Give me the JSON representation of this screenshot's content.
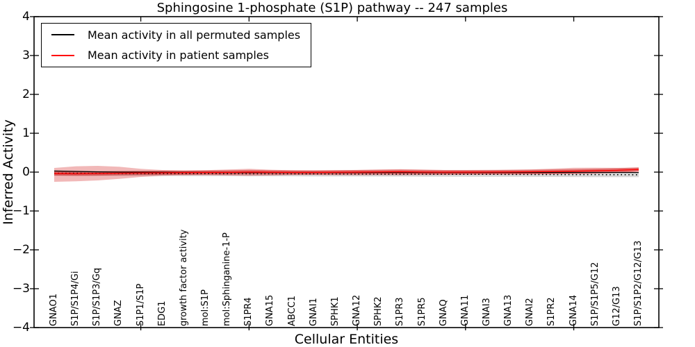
{
  "chart_data": {
    "type": "line",
    "title": "Sphingosine 1-phosphate (S1P) pathway -- 247 samples",
    "xlabel": "Cellular Entities",
    "ylabel": "Inferred Activity",
    "ylim": [
      -4,
      4
    ],
    "grid": false,
    "legend": {
      "position": "upper left",
      "entries": [
        {
          "label": "Mean activity in all permuted samples",
          "color": "#000000"
        },
        {
          "label": "Mean activity in patient samples",
          "color": "#ff0000"
        }
      ]
    },
    "yticks": [
      {
        "value": 4,
        "label": "4"
      },
      {
        "value": 3,
        "label": "3"
      },
      {
        "value": 2,
        "label": "2"
      },
      {
        "value": 1,
        "label": "1"
      },
      {
        "value": 0,
        "label": "0"
      },
      {
        "value": -1,
        "label": "−1"
      },
      {
        "value": -2,
        "label": "−2"
      },
      {
        "value": -3,
        "label": "−3"
      },
      {
        "value": -4,
        "label": "−4"
      }
    ],
    "xticks_minor": [
      5,
      10,
      15,
      20,
      25
    ],
    "categories": [
      "GNAO1",
      "S1P/S1P4/Gi",
      "S1P/S1P3/Gq",
      "GNAZ",
      "S1P1/S1P",
      "EDG1",
      "growth factor activity",
      "mol:S1P",
      "mol:Sphinganine-1-P",
      "S1PR4",
      "GNA15",
      "ABCC1",
      "GNAI1",
      "SPHK1",
      "GNA12",
      "SPHK2",
      "S1PR3",
      "S1PR5",
      "GNAQ",
      "GNA11",
      "GNAI3",
      "GNA13",
      "GNAI2",
      "S1PR2",
      "GNA14",
      "S1P/S1P5/G12",
      "G12/G13",
      "S1P/S1P2/G12/G13"
    ],
    "series": [
      {
        "name": "Mean activity in all permuted samples",
        "color": "#000000",
        "linestyle": "solid",
        "values": [
          0.029,
          0.018,
          0.007,
          0.0,
          -0.004,
          -0.006,
          -0.007,
          -0.008,
          -0.009,
          -0.009,
          -0.009,
          -0.009,
          -0.009,
          -0.009,
          -0.009,
          -0.009,
          -0.009,
          -0.009,
          -0.009,
          -0.009,
          -0.009,
          -0.009,
          -0.009,
          -0.009,
          -0.009,
          -0.009,
          -0.009,
          -0.01
        ]
      },
      {
        "name": "Mean activity in patient samples",
        "color": "#ff0000",
        "linestyle": "solid",
        "values": [
          -0.036,
          -0.043,
          -0.037,
          -0.029,
          -0.021,
          -0.016,
          -0.013,
          -0.009,
          -0.007,
          0.002,
          -0.004,
          -0.007,
          -0.007,
          -0.004,
          0.0,
          0.004,
          0.009,
          0.002,
          -0.002,
          0.0,
          0.002,
          0.004,
          0.007,
          0.014,
          0.023,
          0.034,
          0.046,
          0.068
        ]
      },
      {
        "name": "permuted baseline (dotted)",
        "color": "#000000",
        "linestyle": "dotted",
        "values": [
          -0.03,
          -0.031,
          -0.033,
          -0.034,
          -0.036,
          -0.037,
          -0.038,
          -0.04,
          -0.041,
          -0.043,
          -0.044,
          -0.045,
          -0.047,
          -0.048,
          -0.05,
          -0.051,
          -0.052,
          -0.054,
          -0.055,
          -0.057,
          -0.058,
          -0.059,
          -0.061,
          -0.062,
          -0.064,
          -0.065,
          -0.066,
          -0.068
        ]
      }
    ],
    "bands": [
      {
        "name": "patient mean ± std",
        "color": "#cc0000",
        "opacity": 0.28,
        "upper": [
          0.107,
          0.15,
          0.16,
          0.14,
          0.086,
          0.054,
          0.041,
          0.05,
          0.068,
          0.084,
          0.06,
          0.046,
          0.041,
          0.05,
          0.055,
          0.066,
          0.077,
          0.068,
          0.054,
          0.05,
          0.05,
          0.057,
          0.07,
          0.089,
          0.113,
          0.114,
          0.109,
          0.116
        ],
        "lower": [
          -0.25,
          -0.236,
          -0.214,
          -0.175,
          -0.125,
          -0.093,
          -0.082,
          -0.08,
          -0.087,
          -0.096,
          -0.087,
          -0.077,
          -0.073,
          -0.079,
          -0.08,
          -0.079,
          -0.08,
          -0.077,
          -0.073,
          -0.07,
          -0.066,
          -0.064,
          -0.061,
          -0.057,
          -0.052,
          -0.043,
          -0.023,
          0.011
        ]
      },
      {
        "name": "permuted mean ± std",
        "color": "#808080",
        "opacity": 0.3,
        "upper": [
          0.033,
          0.032,
          0.03,
          0.029,
          0.027,
          0.026,
          0.025,
          0.023,
          0.022,
          0.02,
          0.019,
          0.018,
          0.016,
          0.015,
          0.013,
          0.012,
          0.011,
          0.009,
          0.008,
          0.006,
          0.005,
          0.004,
          0.002,
          0.001,
          -0.001,
          -0.002,
          -0.003,
          -0.005
        ],
        "lower": [
          -0.093,
          -0.094,
          -0.096,
          -0.097,
          -0.099,
          -0.1,
          -0.101,
          -0.103,
          -0.104,
          -0.106,
          -0.107,
          -0.108,
          -0.11,
          -0.111,
          -0.113,
          -0.114,
          -0.115,
          -0.117,
          -0.118,
          -0.12,
          -0.121,
          -0.122,
          -0.124,
          -0.125,
          -0.127,
          -0.128,
          -0.129,
          -0.131
        ]
      }
    ]
  }
}
